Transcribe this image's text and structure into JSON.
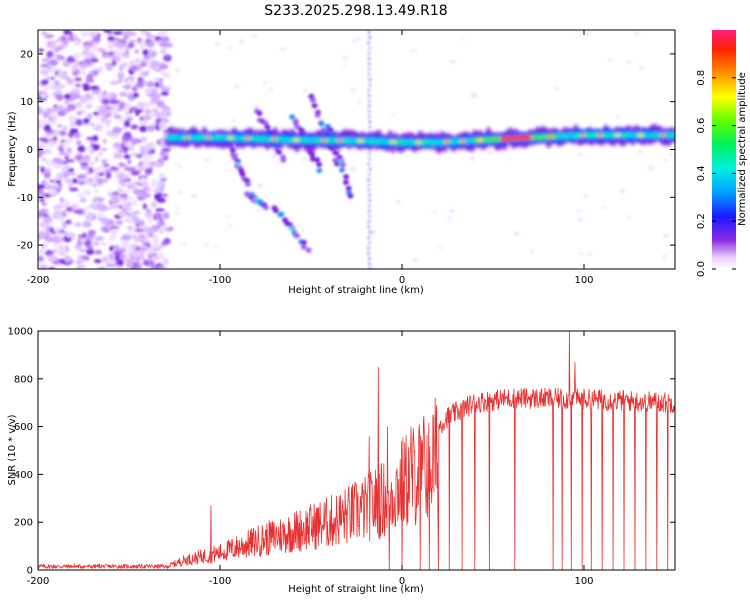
{
  "title": "S233.2025.298.13.49.R18",
  "chart_data": [
    {
      "type": "heatmap",
      "name": "spectrogram",
      "xlabel": "Height of straight line (km)",
      "ylabel": "Frequency (Hz)",
      "xlim": [
        -200,
        150
      ],
      "ylim": [
        -25,
        25
      ],
      "xticks": [
        -200,
        -100,
        0,
        100
      ],
      "yticks": [
        -20,
        -10,
        0,
        10,
        20
      ],
      "xtick_labels": [
        "-200",
        "-100",
        "0",
        "100"
      ],
      "ytick_labels": [
        "-20",
        "-10",
        "0",
        "10",
        "20"
      ],
      "colorbar": {
        "label": "Normalized spectral amplitude",
        "range": [
          0,
          1
        ],
        "ticks": [
          0.0,
          0.2,
          0.4,
          0.6,
          0.8
        ],
        "tick_labels": [
          "0.0",
          "0.2",
          "0.4",
          "0.6",
          "0.8"
        ]
      },
      "features": {
        "noise_region_x": [
          -200,
          -128
        ],
        "main_line": [
          {
            "x": -128,
            "f": 2.5
          },
          {
            "x": -100,
            "f": 2.5
          },
          {
            "x": -60,
            "f": 2.0
          },
          {
            "x": -20,
            "f": 1.8
          },
          {
            "x": 0,
            "f": 1.5
          },
          {
            "x": 20,
            "f": 1.5
          },
          {
            "x": 60,
            "f": 2.3
          },
          {
            "x": 100,
            "f": 3.0
          },
          {
            "x": 150,
            "f": 3.0
          }
        ],
        "peak_x_range": [
          55,
          70
        ],
        "diagonal_streaks": [
          {
            "x0": -95,
            "f0": 1,
            "x1": -85,
            "f1": -7
          },
          {
            "x0": -80,
            "f0": 8,
            "x1": -65,
            "f1": -2
          },
          {
            "x0": -60,
            "f0": 7,
            "x1": -45,
            "f1": -4
          },
          {
            "x0": -50,
            "f0": 11,
            "x1": -35,
            "f1": -3
          },
          {
            "x0": -40,
            "f0": 5,
            "x1": -28,
            "f1": -10
          },
          {
            "x0": -85,
            "f0": -9,
            "x1": -75,
            "f1": -12
          },
          {
            "x0": -70,
            "f0": -12,
            "x1": -52,
            "f1": -21
          }
        ],
        "vertical_line_x": -18
      }
    },
    {
      "type": "line",
      "name": "snr",
      "xlabel": "Height of straight line (km)",
      "ylabel": "SNR (10 * v/v)",
      "xlim": [
        -200,
        150
      ],
      "ylim": [
        0,
        1000
      ],
      "xticks": [
        -200,
        -100,
        0,
        100
      ],
      "yticks": [
        0,
        200,
        400,
        600,
        800,
        1000
      ],
      "xtick_labels": [
        "-200",
        "-100",
        "0",
        "100"
      ],
      "ytick_labels": [
        "0",
        "200",
        "400",
        "600",
        "800",
        "1000"
      ],
      "color": "#e83030",
      "envelope": [
        {
          "x": -200,
          "y": 15
        },
        {
          "x": -130,
          "y": 15
        },
        {
          "x": -120,
          "y": 50
        },
        {
          "x": -100,
          "y": 90
        },
        {
          "x": -80,
          "y": 150
        },
        {
          "x": -60,
          "y": 200
        },
        {
          "x": -40,
          "y": 250
        },
        {
          "x": -20,
          "y": 320
        },
        {
          "x": -8,
          "y": 380
        },
        {
          "x": 0,
          "y": 450
        },
        {
          "x": 10,
          "y": 520
        },
        {
          "x": 25,
          "y": 640
        },
        {
          "x": 40,
          "y": 700
        },
        {
          "x": 60,
          "y": 720
        },
        {
          "x": 100,
          "y": 715
        },
        {
          "x": 150,
          "y": 700
        }
      ],
      "spikes": [
        {
          "x": -105,
          "y": 270
        },
        {
          "x": -18,
          "y": 560
        },
        {
          "x": -13,
          "y": 850
        },
        {
          "x": -8,
          "y": 600
        },
        {
          "x": 5,
          "y": 600
        },
        {
          "x": 92,
          "y": 1000
        },
        {
          "x": 95,
          "y": 870
        }
      ],
      "gaps_x": [
        -7,
        0,
        5,
        10,
        15,
        20,
        26,
        33,
        40,
        48,
        62,
        83,
        88,
        93,
        99,
        104,
        110,
        116,
        122,
        128,
        134,
        140,
        146
      ]
    }
  ],
  "colors": {
    "line": "#e83030",
    "axis": "#000000",
    "background": "#ffffff"
  }
}
